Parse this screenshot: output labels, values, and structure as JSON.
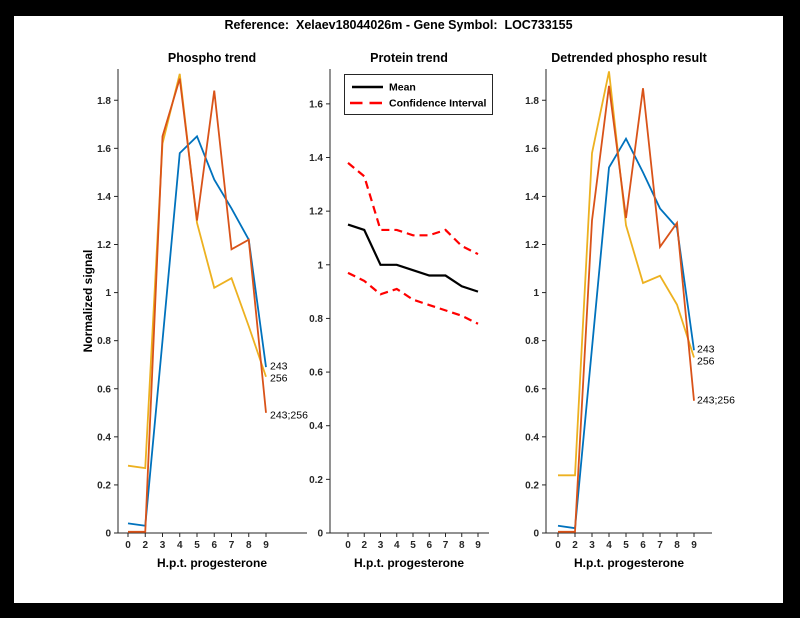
{
  "figure_title": "Reference:  Xelaev18044026m - Gene Symbol:  LOC733155",
  "colors": {
    "series_blue": "#0072BD",
    "series_orange": "#D95319",
    "series_yellow": "#EDB120",
    "ci_red": "#FF0000",
    "mean_black": "#000000",
    "axis_gray": "#262626",
    "figure_border": "#000000",
    "plot_background": "#FFFFFF"
  },
  "chart_data": [
    {
      "type": "line",
      "title": "Phospho trend",
      "xlabel": "H.p.t. progesterone",
      "ylabel": "Normalized signal",
      "categories": [
        "0",
        "2",
        "3",
        "4",
        "5",
        "6",
        "7",
        "8",
        "9"
      ],
      "ylim": [
        0,
        1.93
      ],
      "yticks": [
        0,
        0.2,
        0.4,
        0.6,
        0.8,
        1,
        1.2,
        1.4,
        1.6,
        1.8
      ],
      "grid": false,
      "legend": null,
      "series": [
        {
          "name": "243",
          "color": "#0072BD",
          "style": "solid",
          "values": [
            0.04,
            0.03,
            0.8,
            1.58,
            1.65,
            1.47,
            1.35,
            1.22,
            0.69
          ]
        },
        {
          "name": "256",
          "color": "#EDB120",
          "style": "solid",
          "values": [
            0.28,
            0.27,
            1.62,
            1.91,
            1.29,
            1.02,
            1.06,
            0.86,
            0.65
          ]
        },
        {
          "name": "243;256",
          "color": "#D95319",
          "style": "solid",
          "values": [
            0.005,
            0.005,
            1.65,
            1.89,
            1.3,
            1.84,
            1.18,
            1.22,
            0.5
          ]
        }
      ],
      "end_labels": [
        "243",
        "256",
        "243;256"
      ]
    },
    {
      "type": "line",
      "title": "Protein trend",
      "xlabel": "H.p.t. progesterone",
      "ylabel": "",
      "categories": [
        "0",
        "2",
        "3",
        "4",
        "5",
        "6",
        "7",
        "8",
        "9"
      ],
      "ylim": [
        0,
        1.73
      ],
      "yticks": [
        0,
        0.2,
        0.4,
        0.6,
        0.8,
        1,
        1.2,
        1.4,
        1.6
      ],
      "grid": false,
      "legend": {
        "position": "northwest",
        "entries": [
          "Mean",
          "Confidence Interval"
        ]
      },
      "series": [
        {
          "name": "Mean",
          "color": "#000000",
          "style": "solid",
          "values": [
            1.15,
            1.13,
            1.0,
            1.0,
            0.98,
            0.96,
            0.96,
            0.92,
            0.9
          ]
        },
        {
          "name": "Confidence Interval upper",
          "color": "#FF0000",
          "style": "dashed",
          "values": [
            1.38,
            1.33,
            1.13,
            1.13,
            1.11,
            1.11,
            1.13,
            1.07,
            1.04
          ]
        },
        {
          "name": "Confidence Interval lower",
          "color": "#FF0000",
          "style": "dashed",
          "values": [
            0.97,
            0.94,
            0.89,
            0.91,
            0.87,
            0.85,
            0.83,
            0.81,
            0.78
          ]
        }
      ],
      "end_labels": []
    },
    {
      "type": "line",
      "title": "Detrended phospho result",
      "xlabel": "H.p.t. progesterone",
      "ylabel": "",
      "categories": [
        "0",
        "2",
        "3",
        "4",
        "5",
        "6",
        "7",
        "8",
        "9"
      ],
      "ylim": [
        0,
        1.93
      ],
      "yticks": [
        0,
        0.2,
        0.4,
        0.6,
        0.8,
        1,
        1.2,
        1.4,
        1.6,
        1.8
      ],
      "grid": false,
      "legend": null,
      "series": [
        {
          "name": "243",
          "color": "#0072BD",
          "style": "solid",
          "values": [
            0.03,
            0.02,
            0.77,
            1.52,
            1.64,
            1.5,
            1.35,
            1.27,
            0.76
          ]
        },
        {
          "name": "256",
          "color": "#EDB120",
          "style": "solid",
          "values": [
            0.24,
            0.24,
            1.58,
            1.92,
            1.28,
            1.04,
            1.07,
            0.95,
            0.73
          ]
        },
        {
          "name": "243;256",
          "color": "#D95319",
          "style": "solid",
          "values": [
            0.005,
            0.005,
            1.3,
            1.86,
            1.31,
            1.85,
            1.19,
            1.29,
            0.55
          ]
        }
      ],
      "end_labels": [
        "243",
        "256",
        "243;256"
      ]
    }
  ]
}
